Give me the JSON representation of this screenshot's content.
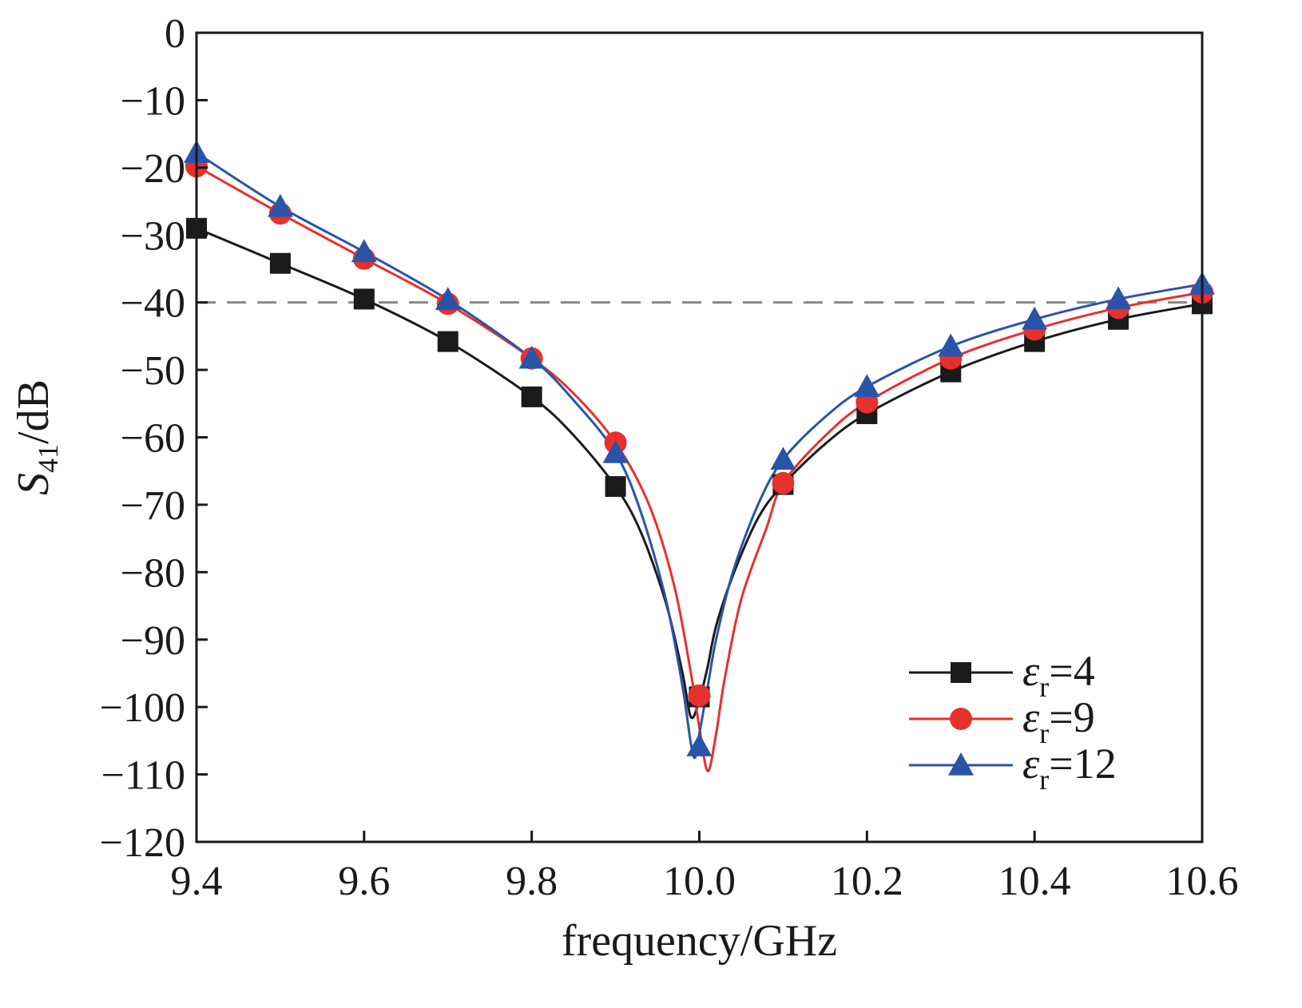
{
  "chart_data": {
    "type": "line",
    "xlabel": "frequency/GHz",
    "ylabel": {
      "symbol": "S",
      "subscript": "41",
      "unit": "/dB"
    },
    "xlim": [
      9.4,
      10.6
    ],
    "ylim": [
      -120,
      0
    ],
    "x_ticks": [
      "9.4",
      "9.6",
      "9.8",
      "10.0",
      "10.2",
      "10.4",
      "10.6"
    ],
    "y_ticks": [
      "0",
      "−10",
      "−20",
      "−30",
      "−40",
      "−50",
      "−60",
      "−70",
      "−80",
      "−90",
      "−100",
      "−110",
      "−120"
    ],
    "x_tick_values": [
      9.4,
      9.6,
      9.8,
      10.0,
      10.2,
      10.4,
      10.6
    ],
    "y_tick_values": [
      0,
      -10,
      -20,
      -30,
      -40,
      -50,
      -60,
      -70,
      -80,
      -90,
      -100,
      -110,
      -120
    ],
    "grid": false,
    "legend_position": "bottom-right",
    "reference_line": {
      "y": -40,
      "style": "dashed",
      "color": "#888888"
    },
    "series": [
      {
        "legend_symbol": "ε",
        "legend_subscript": "r",
        "legend_value": "=4",
        "color": "#1a1a1a",
        "marker": "square",
        "x": [
          9.4,
          9.5,
          9.6,
          9.7,
          9.8,
          9.9,
          10.0,
          10.1,
          10.2,
          10.3,
          10.4,
          10.5,
          10.6
        ],
        "y": [
          -29.0,
          -34.2,
          -39.5,
          -45.8,
          -54.0,
          -67.3,
          -98.5,
          -67.0,
          -56.5,
          -50.3,
          -45.8,
          -42.5,
          -40.2
        ],
        "curve_x": [
          9.4,
          9.5,
          9.6,
          9.7,
          9.8,
          9.85,
          9.9,
          9.93,
          9.96,
          9.98,
          9.99,
          10.0,
          10.01,
          10.02,
          10.04,
          10.07,
          10.1,
          10.15,
          10.2,
          10.3,
          10.4,
          10.5,
          10.6
        ],
        "curve_y": [
          -29.0,
          -34.2,
          -39.5,
          -45.8,
          -54.0,
          -59.7,
          -67.3,
          -74.0,
          -84.5,
          -95.0,
          -101.5,
          -99.0,
          -94.0,
          -88.0,
          -80.5,
          -72.0,
          -67.0,
          -61.0,
          -56.5,
          -50.3,
          -45.8,
          -42.5,
          -40.2
        ]
      },
      {
        "legend_symbol": "ε",
        "legend_subscript": "r",
        "legend_value": "=9",
        "color": "#e8302c",
        "marker": "circle",
        "x": [
          9.4,
          9.5,
          9.6,
          9.7,
          9.8,
          9.9,
          10.0,
          10.1,
          10.2,
          10.3,
          10.4,
          10.5,
          10.6
        ],
        "y": [
          -19.8,
          -26.8,
          -33.5,
          -40.2,
          -48.3,
          -60.8,
          -98.3,
          -66.8,
          -54.8,
          -48.3,
          -44.0,
          -40.8,
          -38.5
        ],
        "curve_x": [
          9.4,
          9.5,
          9.6,
          9.7,
          9.8,
          9.85,
          9.9,
          9.94,
          9.97,
          9.99,
          10.0,
          10.01,
          10.02,
          10.03,
          10.05,
          10.08,
          10.1,
          10.15,
          10.2,
          10.3,
          10.4,
          10.5,
          10.6
        ],
        "curve_y": [
          -19.8,
          -26.8,
          -33.5,
          -40.2,
          -48.3,
          -53.5,
          -60.8,
          -70.0,
          -82.0,
          -95.0,
          -103.0,
          -109.5,
          -104.0,
          -96.0,
          -84.0,
          -73.5,
          -66.8,
          -59.8,
          -54.8,
          -48.3,
          -44.0,
          -40.8,
          -38.5
        ]
      },
      {
        "legend_symbol": "ε",
        "legend_subscript": "r",
        "legend_value": "=12",
        "color": "#2a54a8",
        "marker": "triangle",
        "x": [
          9.4,
          9.5,
          9.6,
          9.7,
          9.8,
          9.9,
          10.0,
          10.1,
          10.2,
          10.3,
          10.4,
          10.5,
          10.6
        ],
        "y": [
          -17.8,
          -25.8,
          -32.5,
          -39.6,
          -48.3,
          -62.3,
          -105.8,
          -63.3,
          -52.5,
          -46.5,
          -42.5,
          -39.5,
          -37.3
        ],
        "curve_x": [
          9.4,
          9.5,
          9.6,
          9.7,
          9.8,
          9.85,
          9.9,
          9.93,
          9.96,
          9.98,
          9.99,
          9.995,
          10.0,
          10.01,
          10.02,
          10.04,
          10.07,
          10.1,
          10.15,
          10.2,
          10.3,
          10.4,
          10.5,
          10.6
        ],
        "curve_y": [
          -17.8,
          -25.8,
          -32.5,
          -39.6,
          -48.3,
          -54.5,
          -62.3,
          -71.0,
          -84.0,
          -97.0,
          -105.5,
          -107.5,
          -104.0,
          -97.0,
          -90.0,
          -80.0,
          -70.0,
          -63.3,
          -57.0,
          -52.5,
          -46.5,
          -42.5,
          -39.5,
          -37.3
        ]
      }
    ]
  }
}
